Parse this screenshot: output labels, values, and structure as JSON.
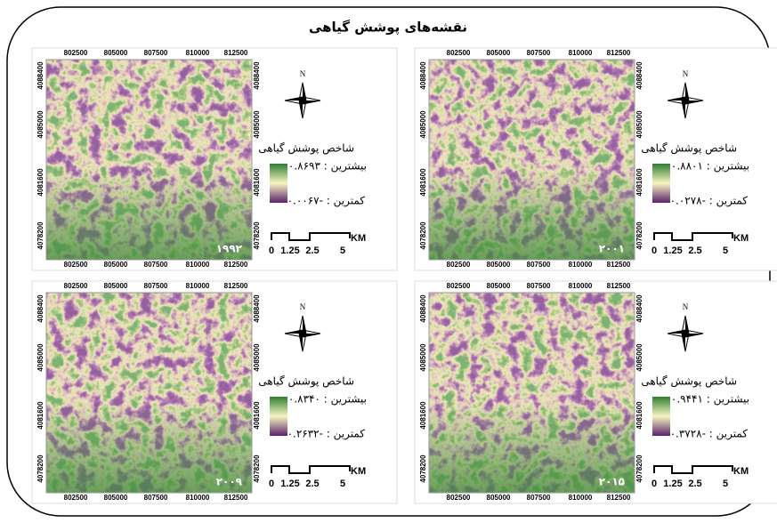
{
  "title": "نقشه‌های پوشش گیاهی",
  "panels": [
    {
      "year": "۱۹۹۲",
      "x_ticks": [
        802500,
        805000,
        807500,
        810000,
        812500
      ],
      "y_ticks": [
        4088400,
        4085000,
        4081600,
        4078200
      ],
      "north": "N",
      "legend": {
        "title": "شاخص پوشش گیاهی",
        "max": "بیشترین : ۰.۸۶۹۳",
        "min": "کمترین : -۰.۰۰۶۷"
      },
      "scale": {
        "labels": [
          "0",
          "1.25",
          "2.5",
          "5"
        ],
        "unit": "KM"
      }
    },
    {
      "year": "۲۰۰۱",
      "x_ticks": [
        802500,
        805000,
        807500,
        810000,
        812500
      ],
      "y_ticks": [
        4088400,
        4085000,
        4081600,
        4078200
      ],
      "north": "N",
      "legend": {
        "title": "شاخص پوشش گیاهی",
        "max": "بیشترین : ۰.۸۸۰۱",
        "min": "کمترین : -۰.۰۲۷۸"
      },
      "scale": {
        "labels": [
          "0",
          "1.25",
          "2.5",
          "5"
        ],
        "unit": "KM"
      }
    },
    {
      "year": "۲۰۰۹",
      "x_ticks": [
        802500,
        805000,
        807500,
        810000,
        812500
      ],
      "y_ticks": [
        4088400,
        4085000,
        4081600,
        4078200
      ],
      "north": "N",
      "legend": {
        "title": "شاخص پوشش گیاهی",
        "max": "بیشترین : ۰.۸۳۴۰",
        "min": "کمترین : -۰.۲۶۳۲"
      },
      "scale": {
        "labels": [
          "0",
          "1.25",
          "2.5",
          "5"
        ],
        "unit": "KM"
      }
    },
    {
      "year": "۲۰۱۵",
      "x_ticks": [
        802500,
        805000,
        807500,
        810000,
        812500
      ],
      "y_ticks": [
        4088400,
        4085000,
        4081600,
        4078200
      ],
      "north": "N",
      "legend": {
        "title": "شاخص پوشش گیاهی",
        "max": "بیشترین : ۰.۹۴۴۱",
        "min": "کمترین : -۰.۳۷۲۸"
      },
      "scale": {
        "labels": [
          "0",
          "1.25",
          "2.5",
          "5"
        ],
        "unit": "KM"
      }
    }
  ]
}
